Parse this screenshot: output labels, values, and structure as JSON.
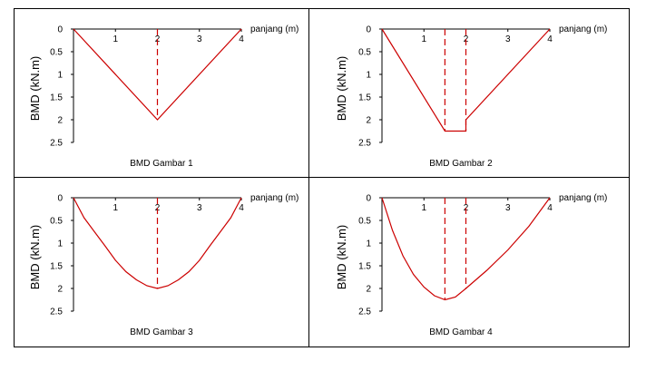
{
  "colors": {
    "series": "#cc0000",
    "axis": "#000000"
  },
  "chart_data": [
    {
      "type": "line",
      "caption": "BMD Gambar 1",
      "xlabel": "panjang (m)",
      "ylabel": "BMD (kN.m)",
      "xlim": [
        0,
        4
      ],
      "ylim": [
        0,
        2.5
      ],
      "y_inverted": true,
      "x_ticks": [
        "1",
        "2",
        "3",
        "4"
      ],
      "y_ticks": [
        "0",
        "0.5",
        "1",
        "1.5",
        "2",
        "2.5"
      ],
      "series": [
        {
          "x": [
            0,
            2,
            4
          ],
          "y": [
            0,
            2,
            0
          ]
        }
      ],
      "dashed_lines": [
        {
          "x": 2,
          "y_from": 0,
          "y_to": 2
        }
      ]
    },
    {
      "type": "line",
      "caption": "BMD Gambar 2",
      "xlabel": "panjang (m)",
      "ylabel": "BMD (kN.m)",
      "xlim": [
        0,
        4
      ],
      "ylim": [
        0,
        2.5
      ],
      "y_inverted": true,
      "x_ticks": [
        "1",
        "2",
        "3",
        "4"
      ],
      "y_ticks": [
        "0",
        "0.5",
        "1",
        "1.5",
        "2",
        "2.5"
      ],
      "series": [
        {
          "x": [
            0,
            1.5,
            2,
            2,
            4
          ],
          "y": [
            0,
            2.25,
            2.25,
            2,
            0
          ]
        }
      ],
      "dashed_lines": [
        {
          "x": 1.5,
          "y_from": 0,
          "y_to": 2.25
        },
        {
          "x": 2,
          "y_from": 0,
          "y_to": 2.25
        }
      ]
    },
    {
      "type": "line",
      "caption": "BMD Gambar 3",
      "xlabel": "panjang (m)",
      "ylabel": "BMD (kN.m)",
      "xlim": [
        0,
        4
      ],
      "ylim": [
        0,
        2.5
      ],
      "y_inverted": true,
      "x_ticks": [
        "1",
        "2",
        "3",
        "4"
      ],
      "y_ticks": [
        "0",
        "0.5",
        "1",
        "1.5",
        "2",
        "2.5"
      ],
      "series": [
        {
          "x": [
            0,
            0.25,
            0.5,
            0.75,
            1,
            1.25,
            1.5,
            1.75,
            2,
            2.25,
            2.5,
            2.75,
            3,
            3.25,
            3.5,
            3.75,
            4
          ],
          "y": [
            0,
            0.44,
            0.75,
            1.06,
            1.38,
            1.63,
            1.81,
            1.94,
            2,
            1.94,
            1.81,
            1.63,
            1.38,
            1.06,
            0.75,
            0.44,
            0
          ]
        }
      ],
      "dashed_lines": [
        {
          "x": 2,
          "y_from": 0,
          "y_to": 2
        }
      ]
    },
    {
      "type": "line",
      "caption": "BMD Gambar 4",
      "xlabel": "panjang (m)",
      "ylabel": "BMD (kN.m)",
      "xlim": [
        0,
        4
      ],
      "ylim": [
        0,
        2.5
      ],
      "y_inverted": true,
      "x_ticks": [
        "1",
        "2",
        "3",
        "4"
      ],
      "y_ticks": [
        "0",
        "0.5",
        "1",
        "1.5",
        "2",
        "2.5"
      ],
      "series": [
        {
          "x": [
            0,
            0.25,
            0.5,
            0.75,
            1,
            1.25,
            1.5,
            1.75,
            2,
            2.5,
            3,
            3.5,
            4
          ],
          "y": [
            0,
            0.72,
            1.28,
            1.69,
            1.97,
            2.16,
            2.25,
            2.19,
            2,
            1.6,
            1.15,
            0.63,
            0
          ]
        }
      ],
      "dashed_lines": [
        {
          "x": 1.5,
          "y_from": 0,
          "y_to": 2.25
        },
        {
          "x": 2,
          "y_from": 0,
          "y_to": 2
        }
      ]
    }
  ]
}
